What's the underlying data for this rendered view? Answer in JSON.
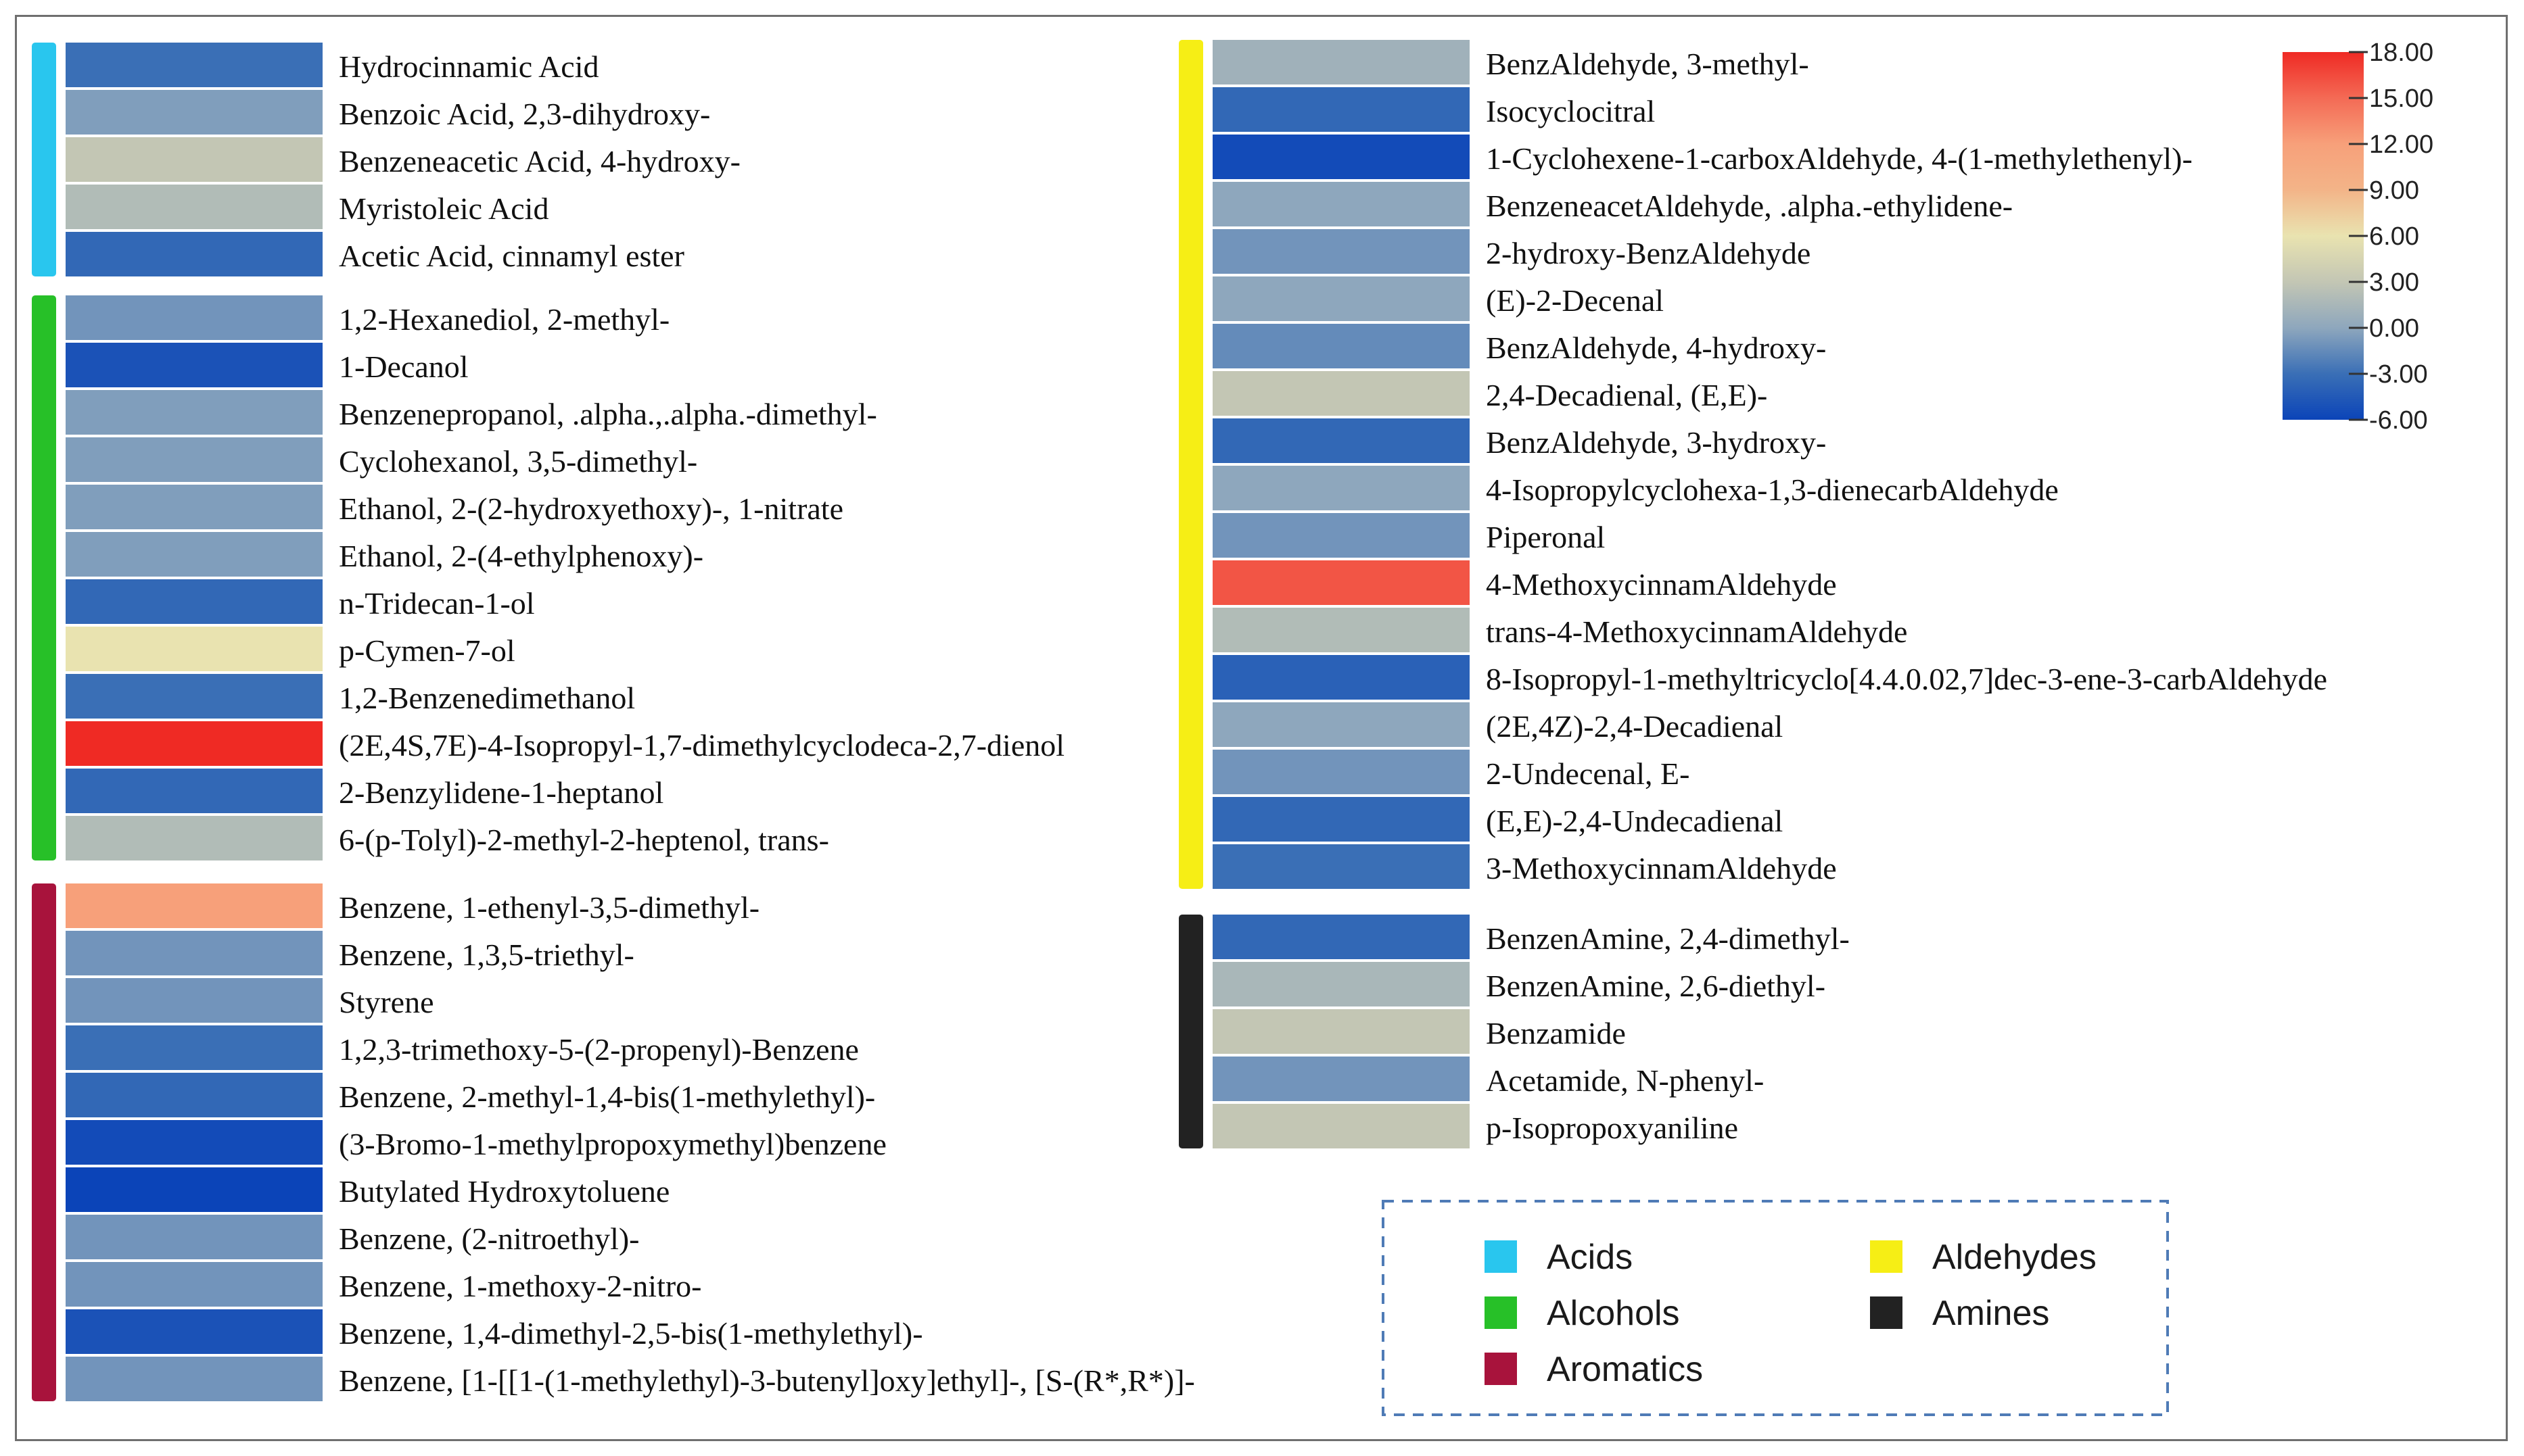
{
  "chart_data": {
    "type": "heatmap",
    "colorscale": {
      "ticks": [
        "18.00",
        "15.00",
        "12.00",
        "9.00",
        "6.00",
        "3.00",
        "0.00",
        "-3.00",
        "-6.00"
      ],
      "min": -6,
      "max": 18,
      "stops": [
        {
          "value": -6,
          "color": "#0b44b8"
        },
        {
          "value": -3,
          "color": "#3a6fb6"
        },
        {
          "value": 0,
          "color": "#8ea7bd"
        },
        {
          "value": 3,
          "color": "#c3c6b4"
        },
        {
          "value": 6,
          "color": "#e9e3b0"
        },
        {
          "value": 9,
          "color": "#f3b488"
        },
        {
          "value": 12,
          "color": "#f7a07a"
        },
        {
          "value": 15,
          "color": "#f46a55"
        },
        {
          "value": 18,
          "color": "#ef2a24"
        }
      ]
    },
    "legend": [
      {
        "name": "Acids",
        "color": "#29c6ee"
      },
      {
        "name": "Aldehydes",
        "color": "#f6ee15"
      },
      {
        "name": "Alcohols",
        "color": "#27c028"
      },
      {
        "name": "Amines",
        "color": "#222222"
      },
      {
        "name": "Aromatics",
        "color": "#a8133c"
      }
    ],
    "groups": [
      {
        "name": "Acids",
        "color": "#29c6ee",
        "rows": [
          {
            "label": "Hydrocinnamic Acid",
            "value": -3
          },
          {
            "label": "Benzoic Acid, 2,3-dihydroxy-",
            "value": -0.5
          },
          {
            "label": "Benzeneacetic Acid, 4-hydroxy-",
            "value": 3
          },
          {
            "label": "Myristoleic Acid",
            "value": 2
          },
          {
            "label": "Acetic Acid, cinnamyl ester",
            "value": -3.5
          }
        ]
      },
      {
        "name": "Alcohols",
        "color": "#27c028",
        "rows": [
          {
            "label": "1,2-Hexanediol, 2-methyl-",
            "value": -1
          },
          {
            "label": "1-Decanol",
            "value": -5
          },
          {
            "label": "Benzenepropanol, .alpha.,.alpha.-dimethyl-",
            "value": -0.5
          },
          {
            "label": "Cyclohexanol, 3,5-dimethyl-",
            "value": -0.5
          },
          {
            "label": "Ethanol, 2-(2-hydroxyethoxy)-, 1-nitrate",
            "value": -0.5
          },
          {
            "label": "Ethanol, 2-(4-ethylphenoxy)-",
            "value": -0.5
          },
          {
            "label": "n-Tridecan-1-ol",
            "value": -3.5
          },
          {
            "label": "p-Cymen-7-ol",
            "value": 6
          },
          {
            "label": "1,2-Benzenedimethanol",
            "value": -3
          },
          {
            "label": "(2E,4S,7E)-4-Isopropyl-1,7-dimethylcyclodeca-2,7-dienol",
            "value": 18
          },
          {
            "label": "2-Benzylidene-1-heptanol",
            "value": -3.5
          },
          {
            "label": "6-(p-Tolyl)-2-methyl-2-heptenol, trans-",
            "value": 2
          }
        ]
      },
      {
        "name": "Aromatics",
        "color": "#a8133c",
        "rows": [
          {
            "label": "Benzene, 1-ethenyl-3,5-dimethyl-",
            "value": 12
          },
          {
            "label": "Benzene, 1,3,5-triethyl-",
            "value": -1
          },
          {
            "label": "Styrene",
            "value": -1
          },
          {
            "label": "1,2,3-trimethoxy-5-(2-propenyl)-Benzene",
            "value": -3
          },
          {
            "label": "Benzene, 2-methyl-1,4-bis(1-methylethyl)-",
            "value": -3.5
          },
          {
            "label": "(3-Bromo-1-methylpropoxymethyl)benzene",
            "value": -5.5
          },
          {
            "label": "Butylated Hydroxytoluene",
            "value": -6
          },
          {
            "label": "Benzene, (2-nitroethyl)-",
            "value": -1
          },
          {
            "label": "Benzene, 1-methoxy-2-nitro-",
            "value": -1
          },
          {
            "label": "Benzene, 1,4-dimethyl-2,5-bis(1-methylethyl)-",
            "value": -5
          },
          {
            "label": "Benzene, [1-[[1-(1-methylethyl)-3-butenyl]oxy]ethyl]-, [S-(R*,R*)]-",
            "value": -1
          }
        ]
      },
      {
        "name": "Aldehydes",
        "color": "#f6ee15",
        "rows": [
          {
            "label": "BenzAldehyde, 3-methyl-",
            "value": 1
          },
          {
            "label": "Isocyclocitral",
            "value": -3.5
          },
          {
            "label": "1-Cyclohexene-1-carboxAldehyde, 4-(1-methylethenyl)-",
            "value": -5.5
          },
          {
            "label": "BenzeneacetAldehyde, .alpha.-ethylidene-",
            "value": 0
          },
          {
            "label": "2-hydroxy-BenzAldehyde",
            "value": -1
          },
          {
            "label": "(E)-2-Decenal",
            "value": 0
          },
          {
            "label": "BenzAldehyde, 4-hydroxy-",
            "value": -1.5
          },
          {
            "label": "2,4-Decadienal, (E,E)-",
            "value": 3
          },
          {
            "label": "BenzAldehyde, 3-hydroxy-",
            "value": -3.5
          },
          {
            "label": "4-Isopropylcyclohexa-1,3-dienecarbAldehyde",
            "value": 0
          },
          {
            "label": "Piperonal",
            "value": -1
          },
          {
            "label": "4-MethoxycinnamAldehyde",
            "value": 16
          },
          {
            "label": "trans-4-MethoxycinnamAldehyde",
            "value": 2
          },
          {
            "label": "8-Isopropyl-1-methyltricyclo[4.4.0.02,7]dec-3-ene-3-carbAldehyde",
            "value": -4
          },
          {
            "label": "(2E,4Z)-2,4-Decadienal",
            "value": 0
          },
          {
            "label": "2-Undecenal, E-",
            "value": -1
          },
          {
            "label": "(E,E)-2,4-Undecadienal",
            "value": -3.5
          },
          {
            "label": "3-MethoxycinnamAldehyde",
            "value": -3
          }
        ]
      },
      {
        "name": "Amines",
        "color": "#222222",
        "rows": [
          {
            "label": "BenzenAmine, 2,4-dimethyl-",
            "value": -3.5
          },
          {
            "label": "BenzenAmine, 2,6-diethyl-",
            "value": 1.5
          },
          {
            "label": "Benzamide",
            "value": 3
          },
          {
            "label": "Acetamide, N-phenyl-",
            "value": -1
          },
          {
            "label": "p-Isopropoxyaniline",
            "value": 3
          }
        ]
      }
    ]
  }
}
